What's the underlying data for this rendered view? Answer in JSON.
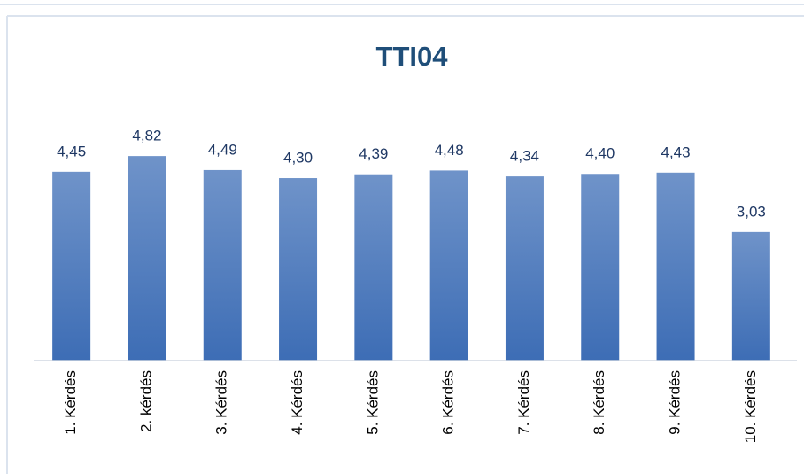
{
  "chart_data": {
    "type": "bar",
    "title": "TTI04",
    "categories": [
      "1. Kérdés",
      "2. kérdés",
      "3. Kérdés",
      "4. Kérdés",
      "5. Kérdés",
      "6. Kérdés",
      "7. Kérdés",
      "8. Kérdés",
      "9. Kérdés",
      "10. Kérdés"
    ],
    "values": [
      4.45,
      4.82,
      4.49,
      4.3,
      4.39,
      4.48,
      4.34,
      4.4,
      4.43,
      3.03
    ],
    "value_labels": [
      "4,45",
      "4,82",
      "4,49",
      "4,30",
      "4,39",
      "4,48",
      "4,34",
      "4,40",
      "4,43",
      "3,03"
    ],
    "color": "#4472c4",
    "ylim": [
      0,
      5
    ]
  }
}
